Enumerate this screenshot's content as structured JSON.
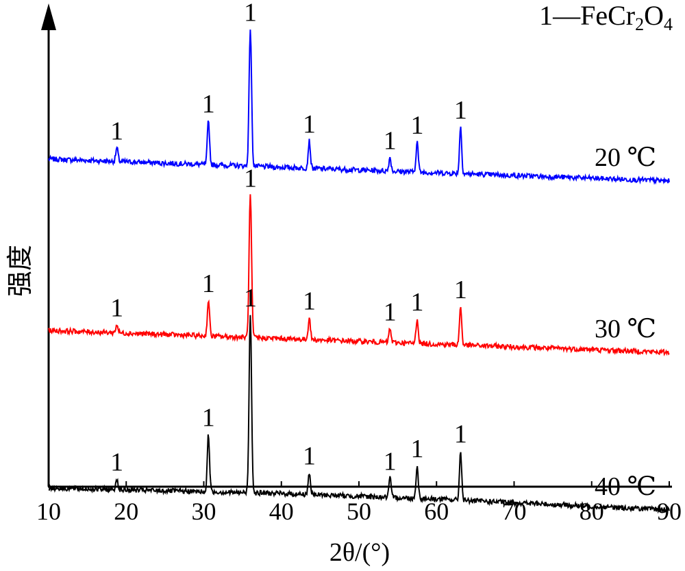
{
  "chart_data": {
    "type": "line",
    "xlabel": "2θ/(°)",
    "ylabel": "强度",
    "xlim": [
      10,
      90
    ],
    "xticks": [
      "10",
      "20",
      "30",
      "40",
      "50",
      "60",
      "70",
      "80",
      "90"
    ],
    "legend": {
      "phase_number": "1",
      "phase_formula": "—FeCr",
      "sub_2": "2",
      "formula_O": "O",
      "sub_4": "4"
    },
    "peaks_2theta": [
      18.8,
      30.6,
      36.0,
      43.6,
      54.0,
      57.5,
      63.1
    ],
    "peak_label": "1",
    "series": [
      {
        "name": "20 ℃",
        "color": "#0000ff",
        "baseline": [
          [
            10,
            0.27
          ],
          [
            40,
            0.24
          ],
          [
            60,
            0.22
          ],
          [
            90,
            0.19
          ]
        ],
        "peak_heights": [
          0.05,
          0.16,
          0.5,
          0.1,
          0.05,
          0.11,
          0.17
        ]
      },
      {
        "name": "30 ℃",
        "color": "#ff0000",
        "baseline": [
          [
            10,
            0.27
          ],
          [
            40,
            0.24
          ],
          [
            60,
            0.22
          ],
          [
            90,
            0.19
          ]
        ],
        "peak_heights": [
          0.03,
          0.13,
          0.52,
          0.08,
          0.05,
          0.09,
          0.14
        ]
      },
      {
        "name": "40 ℃",
        "color": "#000000",
        "baseline": [
          [
            10,
            0.27
          ],
          [
            40,
            0.25
          ],
          [
            60,
            0.23
          ],
          [
            90,
            0.19
          ]
        ],
        "peak_heights": [
          0.04,
          0.21,
          0.65,
          0.08,
          0.07,
          0.12,
          0.18
        ]
      }
    ]
  }
}
